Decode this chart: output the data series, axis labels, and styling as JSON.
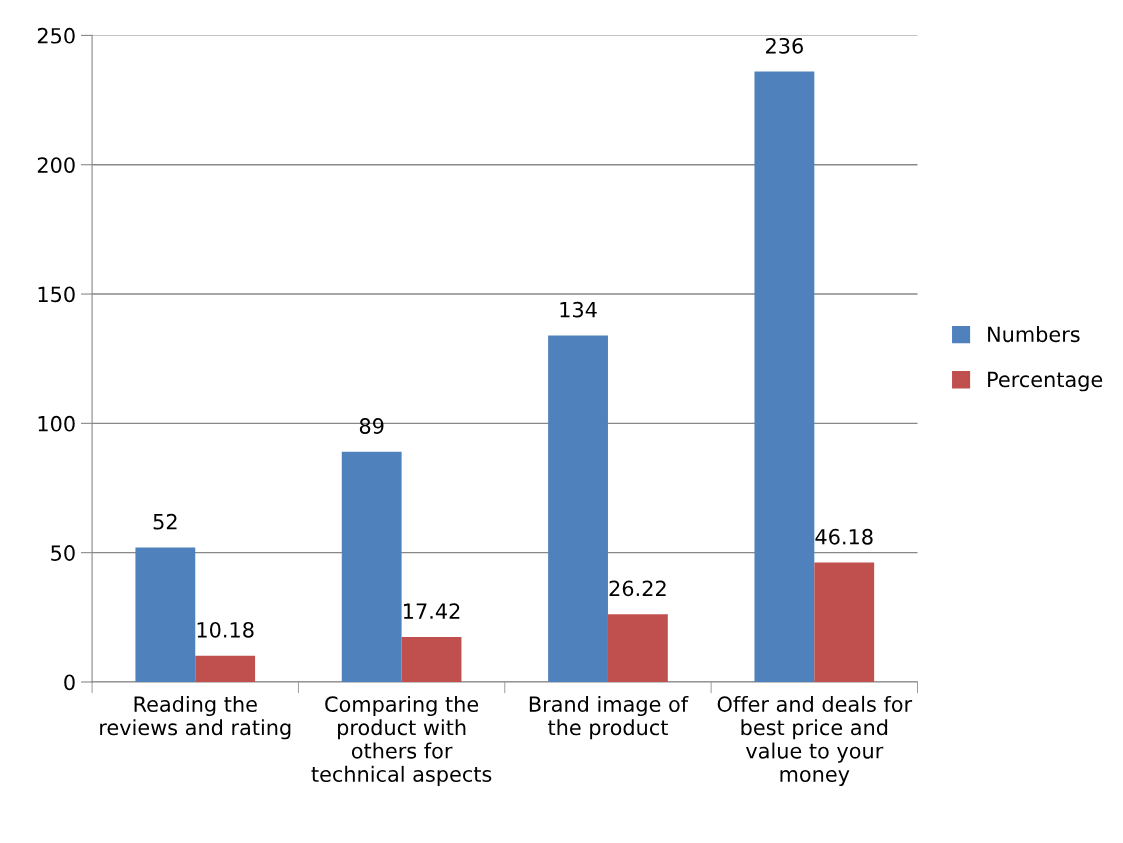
{
  "chart_data": {
    "type": "bar",
    "categories": [
      "Reading the\nreviews and rating",
      "Comparing the\nproduct with\nothers for\ntechnical aspects",
      "Brand image of\nthe product",
      "Offer and deals for\nbest price and\nvalue to your\nmoney"
    ],
    "series": [
      {
        "name": "Numbers",
        "color": "#4f81bd",
        "values": [
          52,
          89,
          134,
          236
        ]
      },
      {
        "name": "Percentage",
        "color": "#c0504d",
        "values": [
          10.18,
          17.42,
          26.22,
          46.18
        ]
      }
    ],
    "ylim": [
      0,
      250
    ],
    "yticks": [
      0,
      50,
      100,
      150,
      200,
      250
    ],
    "grid": "y",
    "legend": "right",
    "data_labels": true
  }
}
